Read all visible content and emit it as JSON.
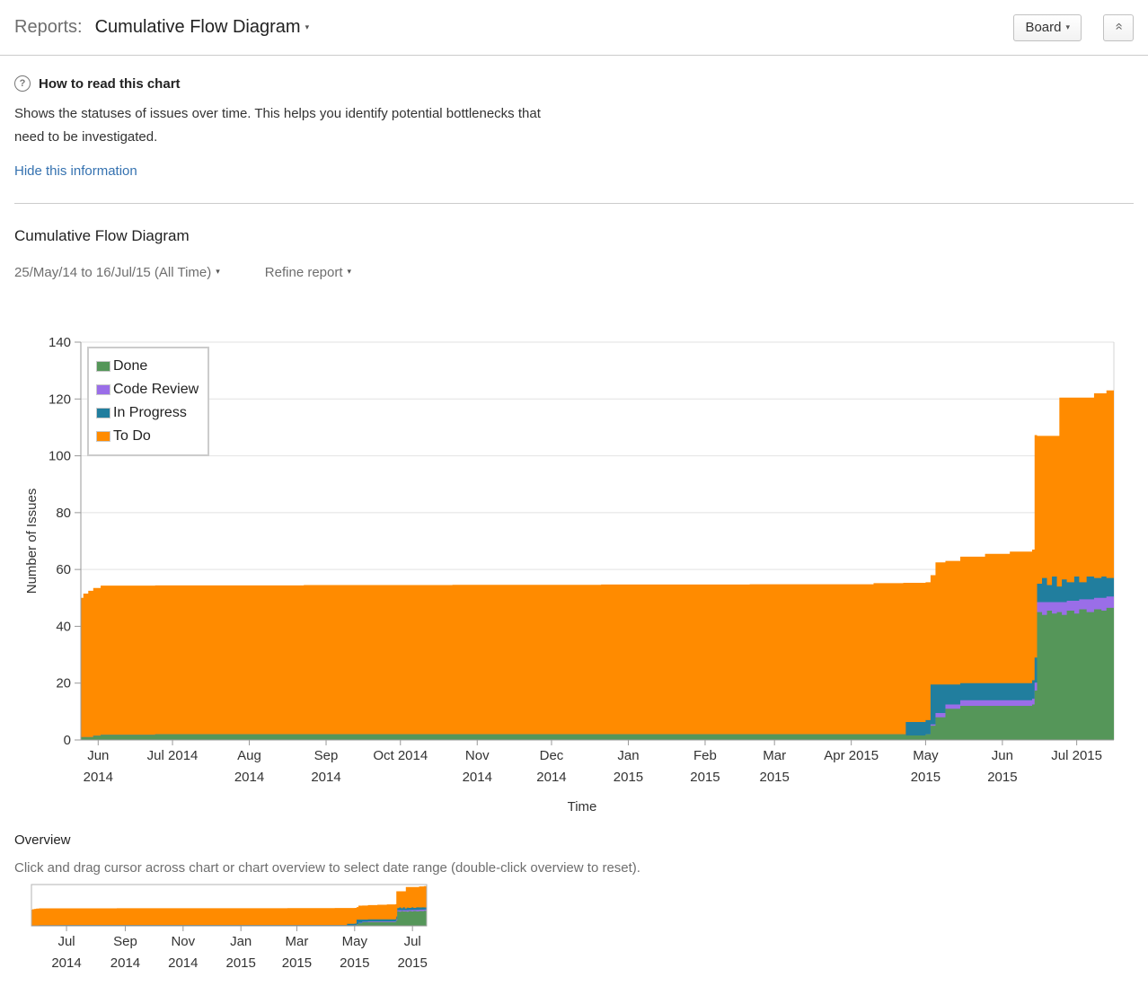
{
  "header": {
    "reports_label": "Reports:",
    "title": "Cumulative Flow Diagram",
    "board_button": "Board"
  },
  "info": {
    "heading": "How to read this chart",
    "body": "Shows the statuses of issues over time. This helps you identify potential bottlenecks that need to be investigated.",
    "hide_link": "Hide this information",
    "help_glyph": "?"
  },
  "report": {
    "heading": "Cumulative Flow Diagram",
    "date_range": "25/May/14 to 16/Jul/15 (All Time)",
    "refine_label": "Refine report"
  },
  "overview": {
    "heading": "Overview",
    "hint": "Click and drag cursor across chart or chart overview to select date range (double-click overview to reset)."
  },
  "chart_data": {
    "type": "area",
    "stacked": true,
    "xlabel": "Time",
    "ylabel": "Number of Issues",
    "ylim": [
      0,
      140
    ],
    "yticks": [
      0,
      20,
      40,
      60,
      80,
      100,
      120,
      140
    ],
    "grid": true,
    "legend_position": "top-left",
    "x_start_date": "2014-05-25",
    "x_end_date": "2015-07-16",
    "days": [
      0,
      1,
      3,
      5,
      8,
      30,
      90,
      150,
      210,
      270,
      320,
      332,
      333,
      341,
      343,
      345,
      349,
      355,
      365,
      375,
      384,
      385,
      386,
      388,
      390,
      392,
      394,
      395,
      396,
      398,
      401,
      403,
      406,
      409,
      412,
      414,
      417
    ],
    "series": [
      {
        "name": "Done",
        "color": "#559659",
        "values": [
          1,
          1,
          1,
          1.5,
          1.8,
          2,
          2,
          2,
          2,
          2,
          2,
          2,
          1.6,
          2,
          5,
          8,
          11,
          12,
          12,
          12,
          12.5,
          17.4,
          45,
          44,
          45.5,
          44.5,
          45,
          45,
          44,
          45.5,
          44.5,
          46,
          45,
          46,
          45.5,
          46.5,
          47.5
        ]
      },
      {
        "name": "Code Review",
        "color": "#9a6ee8",
        "values": [
          0,
          0,
          0,
          0,
          0,
          0,
          0,
          0,
          0,
          0,
          0,
          0,
          0,
          0,
          0.5,
          1.5,
          1.5,
          2,
          2,
          2,
          2,
          2.8,
          3.5,
          4.5,
          3,
          4,
          3.5,
          3.5,
          4.5,
          3.5,
          4.5,
          3.5,
          4.5,
          4,
          4.5,
          4,
          3.5
        ]
      },
      {
        "name": "In Progress",
        "color": "#217e9e",
        "values": [
          0,
          0,
          0,
          0,
          0,
          0,
          0,
          0,
          0,
          0,
          0,
          0,
          4.7,
          5,
          14,
          10,
          7,
          6,
          6,
          6,
          6.5,
          8.8,
          6.5,
          8.5,
          6,
          9,
          5.5,
          5.5,
          8,
          6.5,
          8.5,
          6,
          8,
          7,
          7.5,
          6.5,
          6.5
        ]
      },
      {
        "name": "To Do",
        "color": "#ff8b00",
        "values": [
          49,
          50.5,
          51.5,
          52,
          52.5,
          52.4,
          52.5,
          52.6,
          52.7,
          52.8,
          53.2,
          53.3,
          49,
          48.5,
          38.5,
          43,
          43.5,
          44.5,
          45.5,
          46.3,
          46,
          78.3,
          52,
          50,
          52.5,
          49.5,
          53,
          66.5,
          64,
          65,
          63,
          65,
          63,
          65,
          64.5,
          66,
          65.5
        ]
      }
    ],
    "x_ticks_main": [
      {
        "day": 7,
        "lines": [
          "Jun",
          "2014"
        ]
      },
      {
        "day": 37,
        "lines": [
          "Jul 2014"
        ]
      },
      {
        "day": 68,
        "lines": [
          "Aug",
          "2014"
        ]
      },
      {
        "day": 99,
        "lines": [
          "Sep",
          "2014"
        ]
      },
      {
        "day": 129,
        "lines": [
          "Oct 2014"
        ]
      },
      {
        "day": 160,
        "lines": [
          "Nov",
          "2014"
        ]
      },
      {
        "day": 190,
        "lines": [
          "Dec",
          "2014"
        ]
      },
      {
        "day": 221,
        "lines": [
          "Jan",
          "2015"
        ]
      },
      {
        "day": 252,
        "lines": [
          "Feb",
          "2015"
        ]
      },
      {
        "day": 280,
        "lines": [
          "Mar",
          "2015"
        ]
      },
      {
        "day": 311,
        "lines": [
          "Apr 2015"
        ]
      },
      {
        "day": 341,
        "lines": [
          "May",
          "2015"
        ]
      },
      {
        "day": 372,
        "lines": [
          "Jun",
          "2015"
        ]
      },
      {
        "day": 402,
        "lines": [
          "Jul 2015"
        ]
      }
    ],
    "x_ticks_overview": [
      {
        "day": 37,
        "lines": [
          "Jul",
          "2014"
        ]
      },
      {
        "day": 99,
        "lines": [
          "Sep",
          "2014"
        ]
      },
      {
        "day": 160,
        "lines": [
          "Nov",
          "2014"
        ]
      },
      {
        "day": 221,
        "lines": [
          "Jan",
          "2015"
        ]
      },
      {
        "day": 280,
        "lines": [
          "Mar",
          "2015"
        ]
      },
      {
        "day": 341,
        "lines": [
          "May",
          "2015"
        ]
      },
      {
        "day": 402,
        "lines": [
          "Jul",
          "2015"
        ]
      }
    ]
  }
}
